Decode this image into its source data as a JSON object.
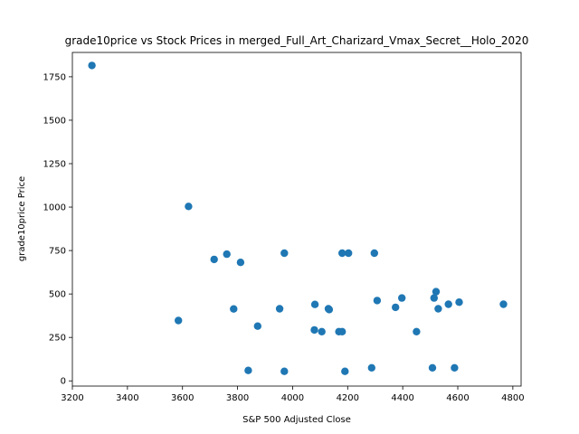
{
  "chart_data": {
    "type": "scatter",
    "title": "grade10price vs Stock Prices in merged_Full_Art_Charizard_Vmax_Secret__Holo_2020",
    "xlabel": "S&P 500 Adjusted Close",
    "ylabel": "grade10price Price",
    "xlim": [
      3200,
      4830
    ],
    "ylim": [
      -30,
      1890
    ],
    "xticks": [
      3200,
      3400,
      3600,
      3800,
      4000,
      4200,
      4400,
      4600,
      4800
    ],
    "yticks": [
      0,
      250,
      500,
      750,
      1000,
      1250,
      1500,
      1750
    ],
    "grid": false,
    "marker_color": "#1f77b4",
    "points": [
      {
        "x": 3271,
        "y": 1815
      },
      {
        "x": 3622,
        "y": 1004
      },
      {
        "x": 3585,
        "y": 347
      },
      {
        "x": 3715,
        "y": 699
      },
      {
        "x": 3761,
        "y": 729
      },
      {
        "x": 3786,
        "y": 414
      },
      {
        "x": 3811,
        "y": 682
      },
      {
        "x": 3839,
        "y": 60
      },
      {
        "x": 3873,
        "y": 315
      },
      {
        "x": 3953,
        "y": 415
      },
      {
        "x": 3970,
        "y": 735
      },
      {
        "x": 3970,
        "y": 55
      },
      {
        "x": 4079,
        "y": 293
      },
      {
        "x": 4081,
        "y": 440
      },
      {
        "x": 4106,
        "y": 283
      },
      {
        "x": 4130,
        "y": 415
      },
      {
        "x": 4133,
        "y": 410
      },
      {
        "x": 4168,
        "y": 283
      },
      {
        "x": 4180,
        "y": 735
      },
      {
        "x": 4180,
        "y": 283
      },
      {
        "x": 4190,
        "y": 55
      },
      {
        "x": 4203,
        "y": 735
      },
      {
        "x": 4287,
        "y": 75
      },
      {
        "x": 4297,
        "y": 735
      },
      {
        "x": 4307,
        "y": 462
      },
      {
        "x": 4374,
        "y": 423
      },
      {
        "x": 4397,
        "y": 477
      },
      {
        "x": 4450,
        "y": 283
      },
      {
        "x": 4508,
        "y": 75
      },
      {
        "x": 4514,
        "y": 477
      },
      {
        "x": 4521,
        "y": 513
      },
      {
        "x": 4529,
        "y": 415
      },
      {
        "x": 4566,
        "y": 441
      },
      {
        "x": 4588,
        "y": 75
      },
      {
        "x": 4605,
        "y": 453
      },
      {
        "x": 4766,
        "y": 441
      }
    ]
  }
}
